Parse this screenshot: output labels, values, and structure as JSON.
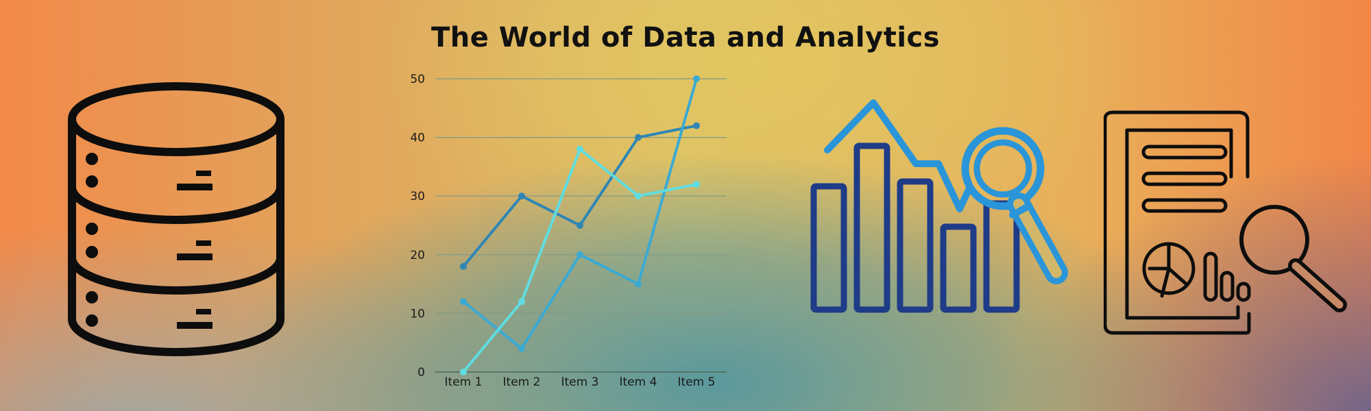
{
  "page": {
    "title": "The World of Data and Analytics"
  },
  "icons": {
    "left": "database-icon",
    "right_center": "bar-chart-magnifier-icon",
    "right": "report-magnifier-icon"
  },
  "colors": {
    "icon_black": "#0d0d0d",
    "bar_navy": "#1f3c88",
    "magnifier_blue": "#2a95d8",
    "gridline": "#7f9a86"
  },
  "chart_data": {
    "type": "line",
    "categories": [
      "Item 1",
      "Item 2",
      "Item 3",
      "Item 4",
      "Item 5"
    ],
    "ylim": [
      0,
      50
    ],
    "yticks": [
      0,
      10,
      20,
      30,
      40,
      50
    ],
    "grid": true,
    "series": [
      {
        "values": [
          18,
          30,
          25,
          40,
          42
        ],
        "color": "#2f86b5"
      },
      {
        "values": [
          12,
          4,
          20,
          15,
          50
        ],
        "color": "#3aaad3"
      },
      {
        "values": [
          0,
          12,
          38,
          30,
          32
        ],
        "color": "#5fdde0"
      }
    ]
  }
}
